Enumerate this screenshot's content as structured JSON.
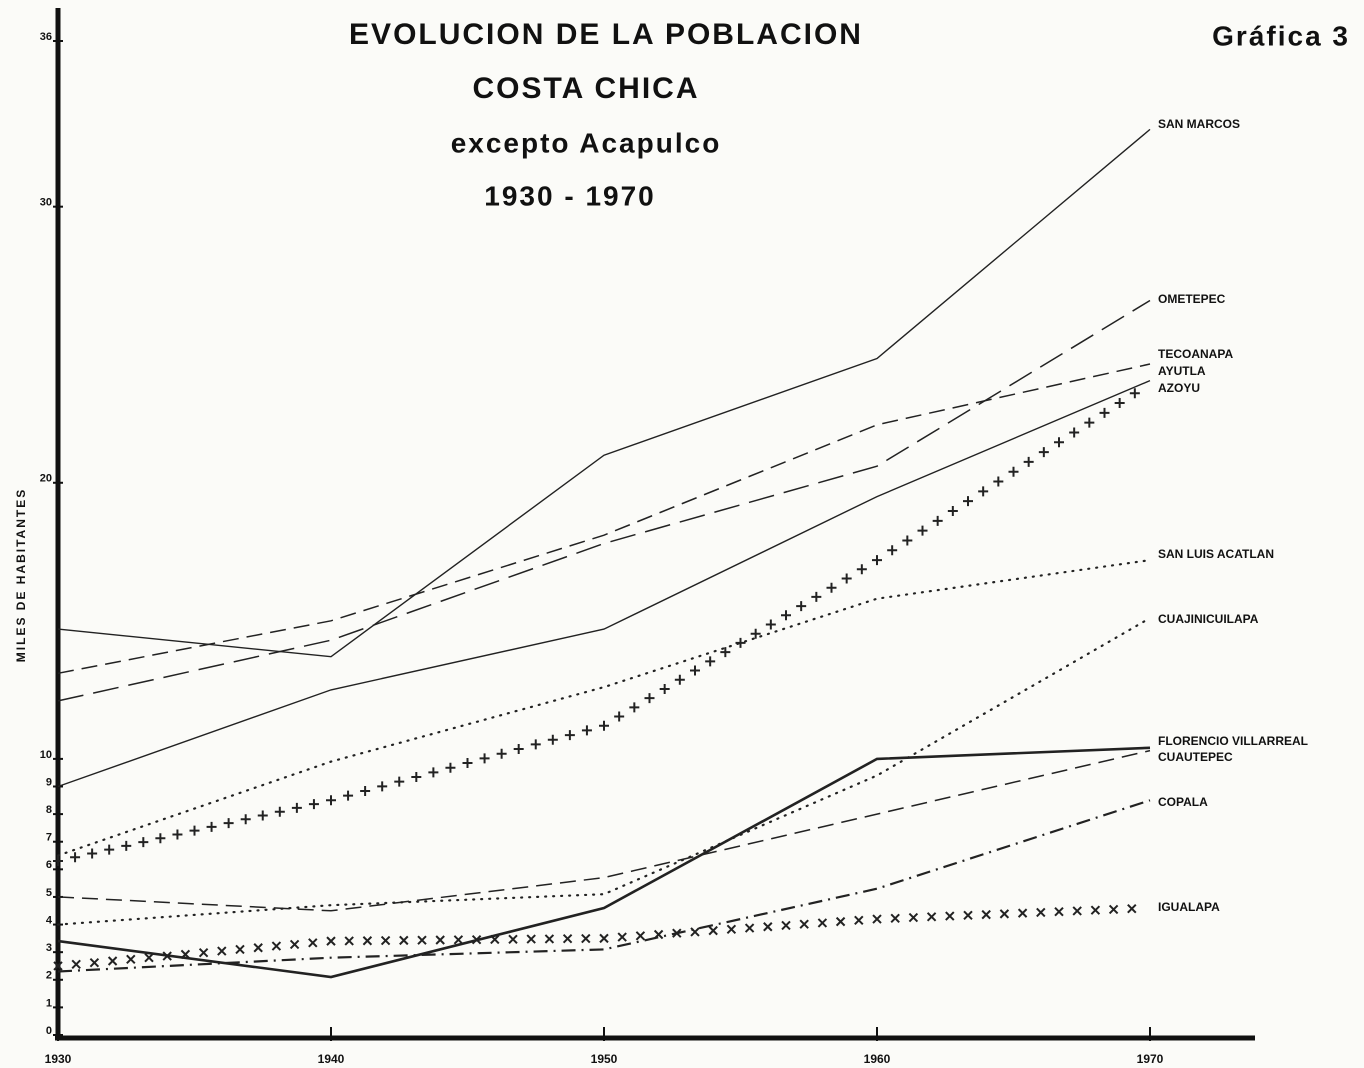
{
  "chart_data": {
    "type": "line",
    "title": "EVOLUCION DE LA POBLACION",
    "subtitle": [
      "COSTA CHICA",
      "excepto Acapulco",
      "1930 - 1970"
    ],
    "figure_label": "Gráfica 3",
    "y_label": "MILES DE HABITANTES",
    "x": [
      1930,
      1940,
      1950,
      1960,
      1970
    ],
    "xlim": [
      1930,
      1970
    ],
    "xticks": [
      1930,
      1940,
      1950,
      1960,
      1970
    ],
    "ylim": [
      0,
      36
    ],
    "yticks": [
      0,
      1,
      2,
      3,
      4,
      5,
      6,
      7,
      8,
      9,
      10,
      20,
      30,
      36
    ],
    "series": [
      {
        "name": "SAN MARCOS",
        "color": "#222",
        "style": "solid",
        "values": [
          14.7,
          13.7,
          21.0,
          24.5,
          32.8
        ]
      },
      {
        "name": "OMETEPEC",
        "color": "#222",
        "style": "longdash",
        "values": [
          12.1,
          14.3,
          17.8,
          20.6,
          26.6
        ]
      },
      {
        "name": "TECOANAPA",
        "color": "#222",
        "style": "dashed",
        "values": [
          13.1,
          15.0,
          18.1,
          22.1,
          24.3
        ]
      },
      {
        "name": "AYUTLA",
        "color": "#222",
        "style": "solid",
        "values": [
          9.0,
          12.5,
          14.7,
          19.5,
          23.7
        ]
      },
      {
        "name": "AZOYU",
        "color": "#222",
        "style": "plus",
        "values": [
          6.3,
          8.5,
          11.2,
          17.2,
          23.6
        ]
      },
      {
        "name": "SAN LUIS ACATLAN",
        "color": "#222",
        "style": "dotted",
        "values": [
          6.5,
          9.9,
          12.6,
          15.8,
          17.2
        ]
      },
      {
        "name": "CUAJINICUILAPA",
        "color": "#222",
        "style": "dotted",
        "values": [
          4.0,
          4.7,
          5.1,
          9.4,
          15.1
        ]
      },
      {
        "name": "FLORENCIO VILLARREAL",
        "color": "#222",
        "style": "thick",
        "values": [
          3.4,
          2.1,
          4.6,
          10.0,
          10.4
        ]
      },
      {
        "name": "CUAUTEPEC",
        "color": "#222",
        "style": "dashed",
        "values": [
          5.0,
          4.5,
          5.7,
          8.0,
          10.3
        ]
      },
      {
        "name": "COPALA",
        "color": "#222",
        "style": "dashdot",
        "values": [
          2.3,
          2.8,
          3.1,
          5.3,
          8.5
        ]
      },
      {
        "name": "IGUALAPA",
        "color": "#222",
        "style": "cross",
        "values": [
          2.5,
          3.4,
          3.5,
          4.2,
          4.6
        ]
      }
    ]
  }
}
